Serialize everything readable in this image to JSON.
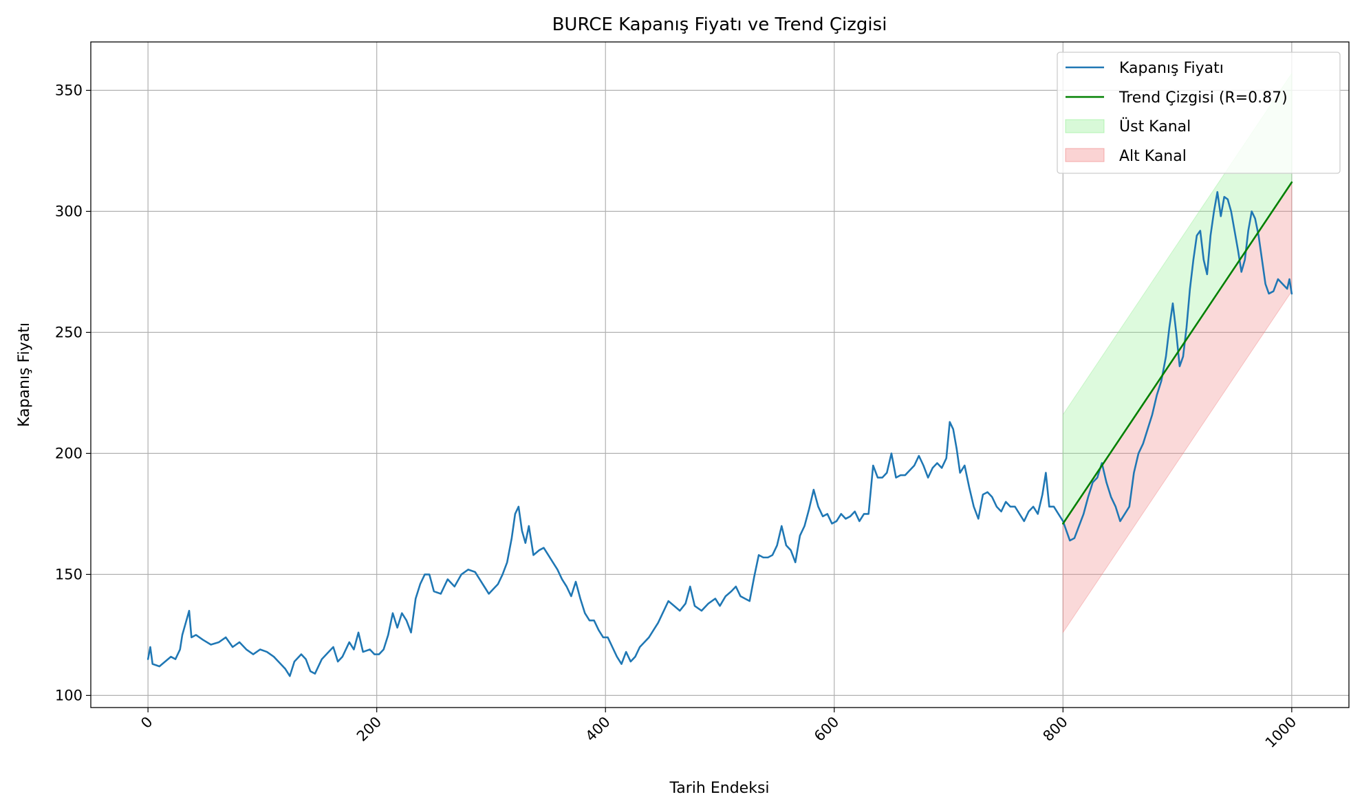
{
  "chart_data": {
    "type": "line",
    "title": "BURCE Kapanış Fiyatı ve Trend Çizgisi",
    "xlabel": "Tarih Endeksi",
    "ylabel": "Kapanış Fiyatı",
    "xlim": [
      -50,
      1050
    ],
    "ylim": [
      95,
      370
    ],
    "xticks": [
      0,
      200,
      400,
      600,
      800,
      1000
    ],
    "yticks": [
      100,
      150,
      200,
      250,
      300,
      350
    ],
    "grid": true,
    "legend_position": "top-right",
    "colors": {
      "price": "#1f77b4",
      "trend": "#008000",
      "upper_channel": "#90ee90",
      "lower_channel": "#f08080",
      "grid": "#b0b0b0"
    },
    "series": [
      {
        "name": "Kapanış Fiyatı",
        "kind": "line",
        "points": [
          [
            0,
            115
          ],
          [
            2,
            120
          ],
          [
            4,
            113
          ],
          [
            10,
            112
          ],
          [
            15,
            114
          ],
          [
            20,
            116
          ],
          [
            24,
            115
          ],
          [
            28,
            119
          ],
          [
            30,
            125
          ],
          [
            33,
            130
          ],
          [
            36,
            135
          ],
          [
            38,
            124
          ],
          [
            42,
            125
          ],
          [
            48,
            123
          ],
          [
            55,
            121
          ],
          [
            62,
            122
          ],
          [
            68,
            124
          ],
          [
            74,
            120
          ],
          [
            80,
            122
          ],
          [
            86,
            119
          ],
          [
            92,
            117
          ],
          [
            98,
            119
          ],
          [
            104,
            118
          ],
          [
            110,
            116
          ],
          [
            116,
            113
          ],
          [
            120,
            111
          ],
          [
            124,
            108
          ],
          [
            128,
            114
          ],
          [
            134,
            117
          ],
          [
            138,
            115
          ],
          [
            142,
            110
          ],
          [
            146,
            109
          ],
          [
            152,
            115
          ],
          [
            158,
            118
          ],
          [
            162,
            120
          ],
          [
            166,
            114
          ],
          [
            170,
            116
          ],
          [
            176,
            122
          ],
          [
            180,
            119
          ],
          [
            184,
            126
          ],
          [
            188,
            118
          ],
          [
            194,
            119
          ],
          [
            198,
            117
          ],
          [
            202,
            117
          ],
          [
            206,
            119
          ],
          [
            210,
            125
          ],
          [
            214,
            134
          ],
          [
            218,
            128
          ],
          [
            222,
            134
          ],
          [
            226,
            131
          ],
          [
            230,
            126
          ],
          [
            234,
            140
          ],
          [
            238,
            146
          ],
          [
            242,
            150
          ],
          [
            246,
            150
          ],
          [
            250,
            143
          ],
          [
            256,
            142
          ],
          [
            262,
            148
          ],
          [
            268,
            145
          ],
          [
            274,
            150
          ],
          [
            280,
            152
          ],
          [
            286,
            151
          ],
          [
            290,
            148
          ],
          [
            294,
            145
          ],
          [
            298,
            142
          ],
          [
            302,
            144
          ],
          [
            306,
            146
          ],
          [
            310,
            150
          ],
          [
            314,
            155
          ],
          [
            318,
            165
          ],
          [
            321,
            175
          ],
          [
            324,
            178
          ],
          [
            327,
            168
          ],
          [
            330,
            163
          ],
          [
            333,
            170
          ],
          [
            337,
            158
          ],
          [
            342,
            160
          ],
          [
            346,
            161
          ],
          [
            350,
            158
          ],
          [
            354,
            155
          ],
          [
            358,
            152
          ],
          [
            362,
            148
          ],
          [
            366,
            145
          ],
          [
            370,
            141
          ],
          [
            374,
            147
          ],
          [
            378,
            140
          ],
          [
            382,
            134
          ],
          [
            386,
            131
          ],
          [
            390,
            131
          ],
          [
            394,
            127
          ],
          [
            398,
            124
          ],
          [
            402,
            124
          ],
          [
            406,
            120
          ],
          [
            410,
            116
          ],
          [
            414,
            113
          ],
          [
            418,
            118
          ],
          [
            422,
            114
          ],
          [
            426,
            116
          ],
          [
            430,
            120
          ],
          [
            434,
            122
          ],
          [
            438,
            124
          ],
          [
            442,
            127
          ],
          [
            446,
            130
          ],
          [
            450,
            134
          ],
          [
            455,
            139
          ],
          [
            460,
            137
          ],
          [
            465,
            135
          ],
          [
            470,
            138
          ],
          [
            474,
            145
          ],
          [
            478,
            137
          ],
          [
            484,
            135
          ],
          [
            490,
            138
          ],
          [
            496,
            140
          ],
          [
            500,
            137
          ],
          [
            505,
            141
          ],
          [
            510,
            143
          ],
          [
            514,
            145
          ],
          [
            518,
            141
          ],
          [
            522,
            140
          ],
          [
            526,
            139
          ],
          [
            530,
            149
          ],
          [
            534,
            158
          ],
          [
            538,
            157
          ],
          [
            542,
            157
          ],
          [
            546,
            158
          ],
          [
            550,
            162
          ],
          [
            554,
            170
          ],
          [
            558,
            162
          ],
          [
            562,
            160
          ],
          [
            566,
            155
          ],
          [
            570,
            166
          ],
          [
            574,
            170
          ],
          [
            578,
            177
          ],
          [
            582,
            185
          ],
          [
            586,
            178
          ],
          [
            590,
            174
          ],
          [
            594,
            175
          ],
          [
            598,
            171
          ],
          [
            602,
            172
          ],
          [
            606,
            175
          ],
          [
            610,
            173
          ],
          [
            614,
            174
          ],
          [
            618,
            176
          ],
          [
            622,
            172
          ],
          [
            626,
            175
          ],
          [
            630,
            175
          ],
          [
            634,
            195
          ],
          [
            638,
            190
          ],
          [
            642,
            190
          ],
          [
            646,
            192
          ],
          [
            650,
            200
          ],
          [
            654,
            190
          ],
          [
            658,
            191
          ],
          [
            662,
            191
          ],
          [
            666,
            193
          ],
          [
            670,
            195
          ],
          [
            674,
            199
          ],
          [
            678,
            195
          ],
          [
            682,
            190
          ],
          [
            686,
            194
          ],
          [
            690,
            196
          ],
          [
            694,
            194
          ],
          [
            698,
            198
          ],
          [
            701,
            213
          ],
          [
            704,
            210
          ],
          [
            707,
            202
          ],
          [
            710,
            192
          ],
          [
            714,
            195
          ],
          [
            718,
            186
          ],
          [
            722,
            178
          ],
          [
            726,
            173
          ],
          [
            730,
            183
          ],
          [
            734,
            184
          ],
          [
            738,
            182
          ],
          [
            742,
            178
          ],
          [
            746,
            176
          ],
          [
            750,
            180
          ],
          [
            754,
            178
          ],
          [
            758,
            178
          ],
          [
            762,
            175
          ],
          [
            766,
            172
          ],
          [
            770,
            176
          ],
          [
            774,
            178
          ],
          [
            778,
            175
          ],
          [
            782,
            183
          ],
          [
            785,
            192
          ],
          [
            788,
            178
          ],
          [
            792,
            178
          ],
          [
            796,
            175
          ],
          [
            800,
            172
          ],
          [
            803,
            168
          ],
          [
            806,
            164
          ],
          [
            810,
            165
          ],
          [
            814,
            170
          ],
          [
            818,
            175
          ],
          [
            822,
            182
          ],
          [
            826,
            188
          ],
          [
            830,
            190
          ],
          [
            834,
            196
          ],
          [
            838,
            188
          ],
          [
            842,
            182
          ],
          [
            846,
            178
          ],
          [
            850,
            172
          ],
          [
            854,
            175
          ],
          [
            858,
            178
          ],
          [
            862,
            192
          ],
          [
            866,
            200
          ],
          [
            870,
            204
          ],
          [
            874,
            210
          ],
          [
            878,
            216
          ],
          [
            882,
            224
          ],
          [
            886,
            230
          ],
          [
            890,
            240
          ],
          [
            893,
            252
          ],
          [
            896,
            262
          ],
          [
            899,
            250
          ],
          [
            902,
            236
          ],
          [
            905,
            240
          ],
          [
            908,
            252
          ],
          [
            911,
            268
          ],
          [
            914,
            280
          ],
          [
            917,
            290
          ],
          [
            920,
            292
          ],
          [
            923,
            280
          ],
          [
            926,
            274
          ],
          [
            929,
            290
          ],
          [
            932,
            300
          ],
          [
            935,
            308
          ],
          [
            938,
            298
          ],
          [
            941,
            306
          ],
          [
            944,
            305
          ],
          [
            947,
            300
          ],
          [
            950,
            292
          ],
          [
            953,
            284
          ],
          [
            956,
            275
          ],
          [
            959,
            280
          ],
          [
            962,
            292
          ],
          [
            965,
            300
          ],
          [
            968,
            297
          ],
          [
            971,
            290
          ],
          [
            974,
            280
          ],
          [
            977,
            270
          ],
          [
            980,
            266
          ],
          [
            984,
            267
          ],
          [
            988,
            272
          ],
          [
            992,
            270
          ],
          [
            996,
            268
          ],
          [
            998,
            272
          ],
          [
            1000,
            266
          ]
        ]
      },
      {
        "name": "Trend Çizgisi (R=0.87)",
        "kind": "line",
        "points": [
          [
            800,
            171
          ],
          [
            1000,
            312
          ]
        ]
      },
      {
        "name": "Üst Kanal",
        "kind": "band",
        "x": [
          800,
          1000
        ],
        "lower": [
          171,
          312
        ],
        "upper": [
          216,
          357
        ]
      },
      {
        "name": "Alt Kanal",
        "kind": "band",
        "x": [
          800,
          1000
        ],
        "lower": [
          126,
          267
        ],
        "upper": [
          171,
          312
        ]
      }
    ]
  }
}
